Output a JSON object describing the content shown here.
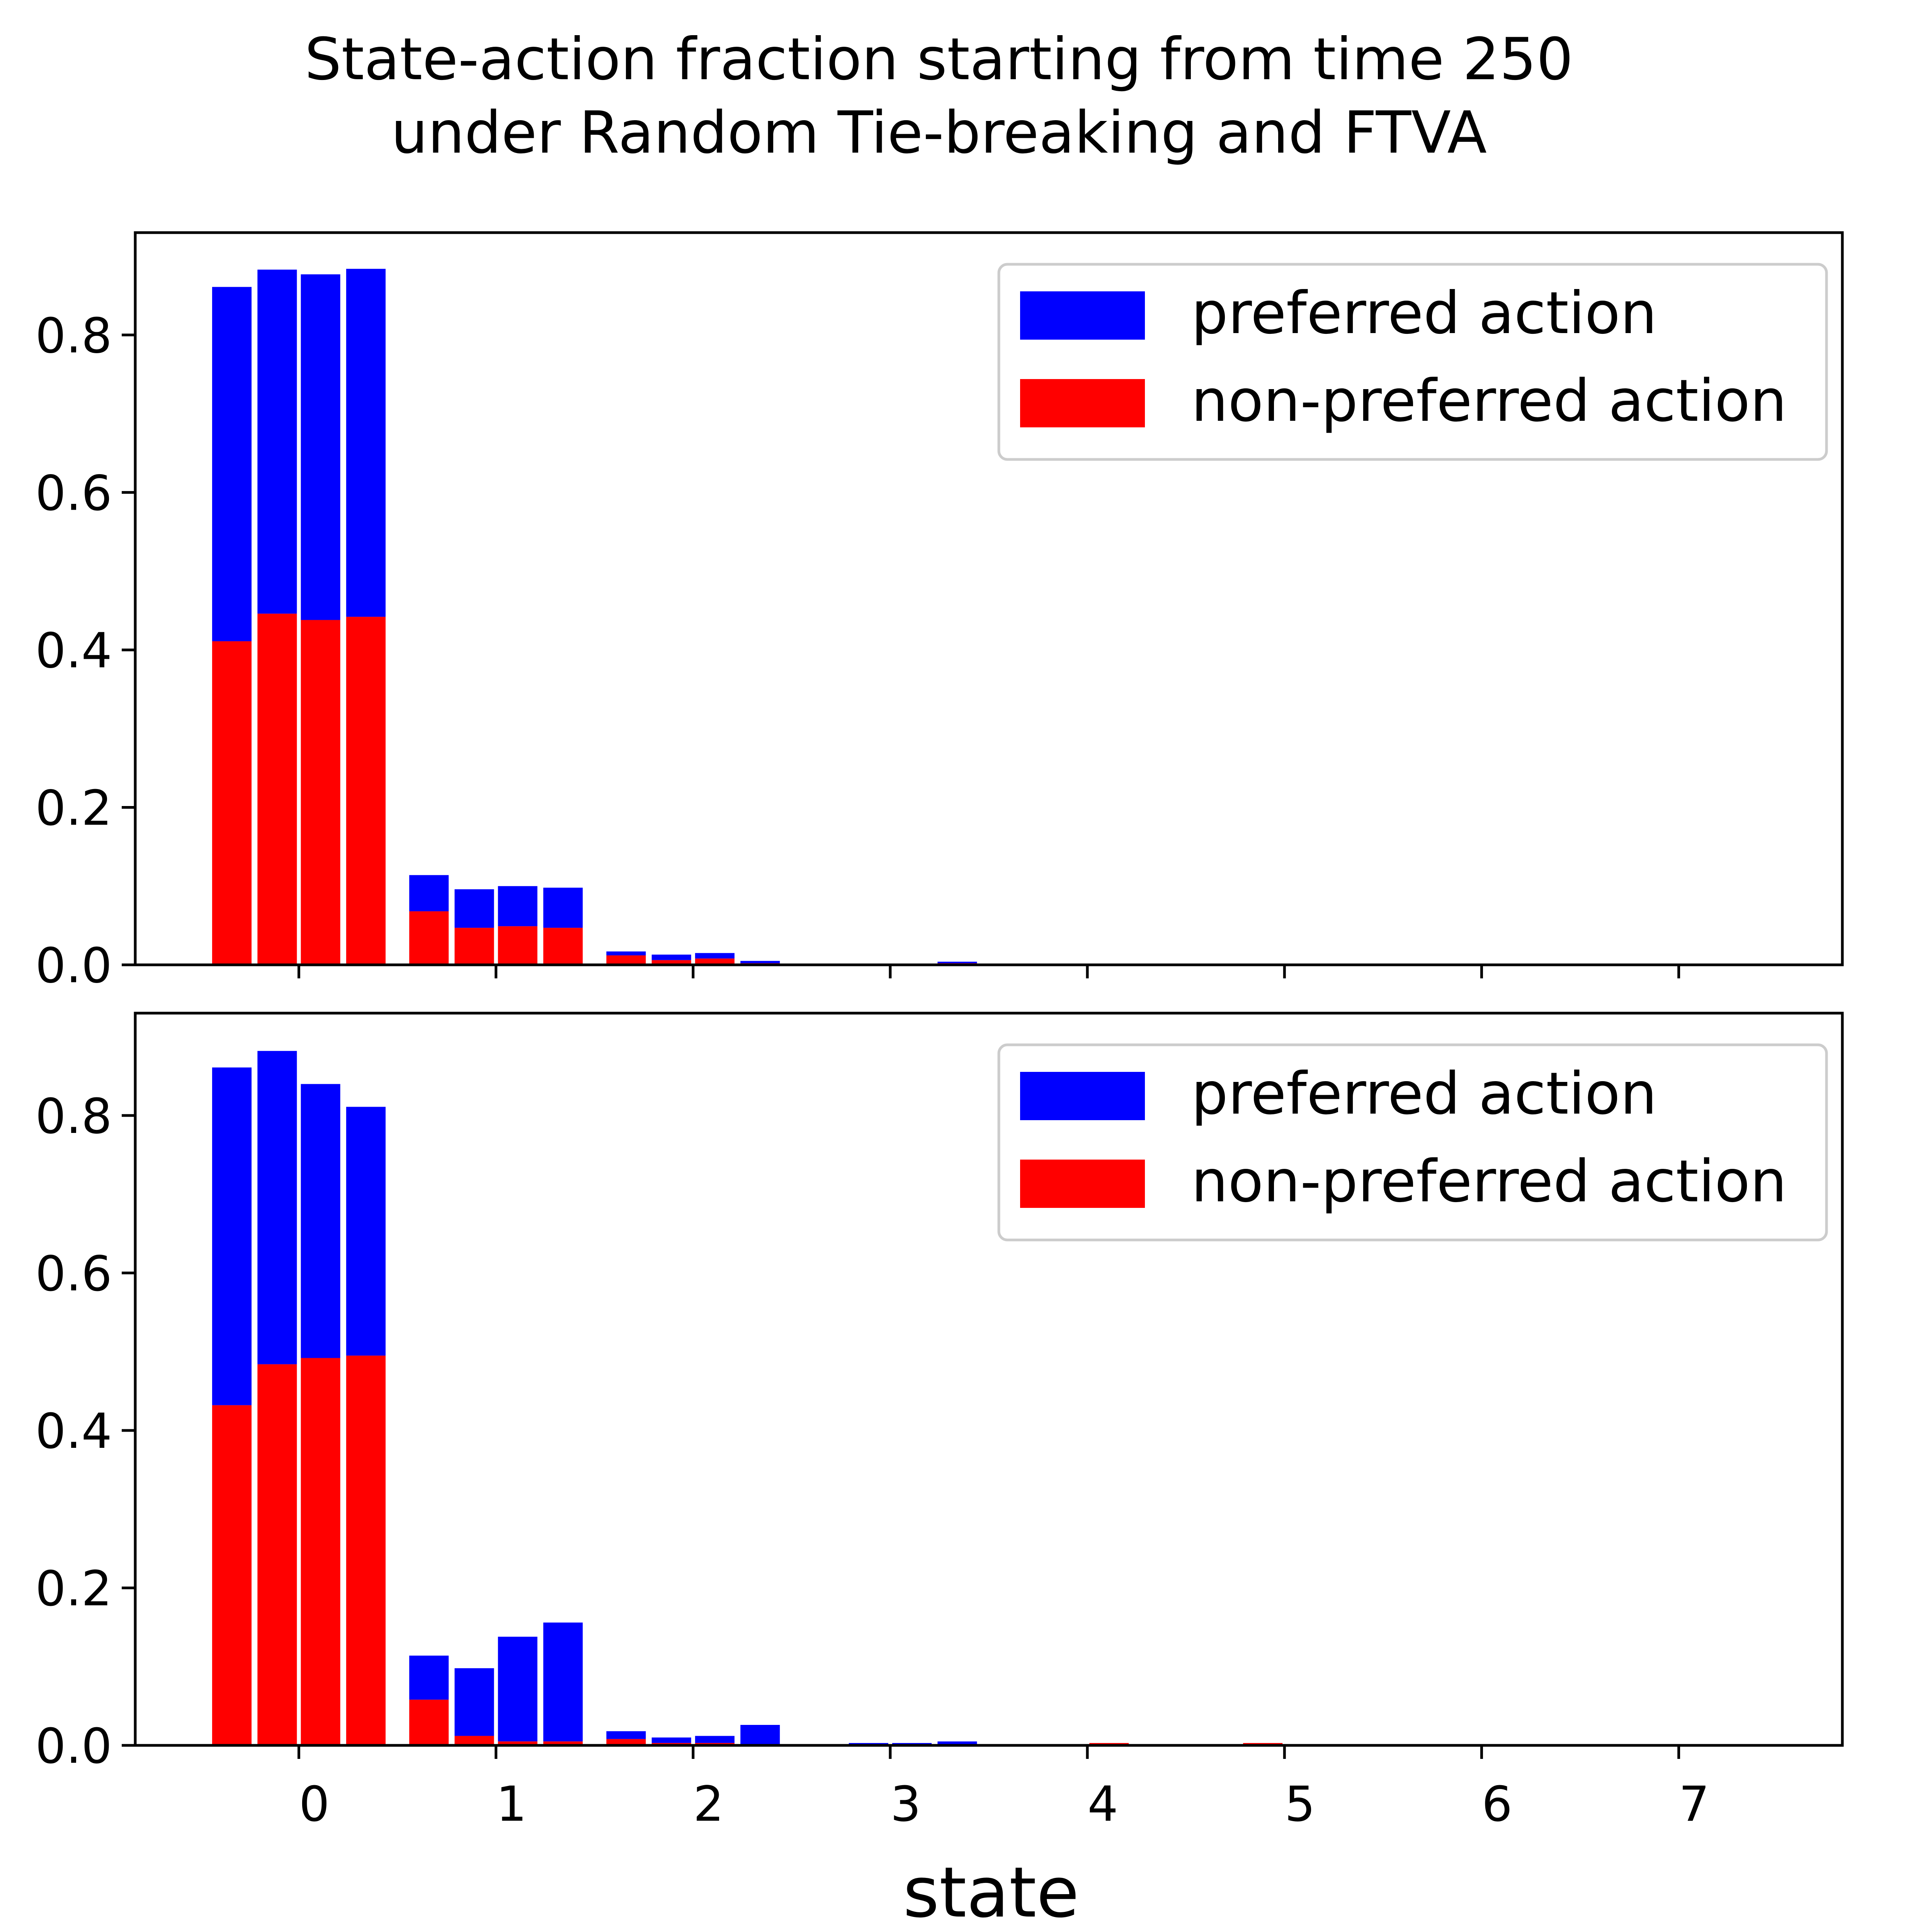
{
  "chart_data": {
    "title_line1": "State-action fraction starting from time 250",
    "title_line2": "under Random Tie-breaking and FTVA",
    "xlabel": "state",
    "x_ticks": [
      "0",
      "1",
      "2",
      "3",
      "4",
      "5",
      "6",
      "7"
    ],
    "y_ticks": [
      "0.0",
      "0.2",
      "0.4",
      "0.6",
      "0.8"
    ],
    "ylim": [
      0,
      0.93
    ],
    "colors": {
      "preferred": "#0000ff",
      "non_preferred": "#ff0000"
    },
    "legend": {
      "placement": "top-right",
      "preferred_label": "preferred action",
      "non_preferred_label": "non-preferred action"
    },
    "panels": [
      {
        "type": "stacked-bar",
        "bars": [
          {
            "x": -0.34,
            "red": 0.411,
            "total": 0.861
          },
          {
            "x": -0.11,
            "red": 0.446,
            "total": 0.883
          },
          {
            "x": 0.11,
            "red": 0.438,
            "total": 0.877
          },
          {
            "x": 0.34,
            "red": 0.442,
            "total": 0.884
          },
          {
            "x": 0.66,
            "red": 0.068,
            "total": 0.114
          },
          {
            "x": 0.89,
            "red": 0.047,
            "total": 0.096
          },
          {
            "x": 1.11,
            "red": 0.049,
            "total": 0.1
          },
          {
            "x": 1.34,
            "red": 0.047,
            "total": 0.098
          },
          {
            "x": 1.66,
            "red": 0.012,
            "total": 0.017
          },
          {
            "x": 1.89,
            "red": 0.006,
            "total": 0.013
          },
          {
            "x": 2.11,
            "red": 0.008,
            "total": 0.015
          },
          {
            "x": 2.34,
            "red": 0.002,
            "total": 0.005
          },
          {
            "x": 3.34,
            "red": 0.002,
            "total": 0.004
          }
        ]
      },
      {
        "type": "stacked-bar",
        "bars": [
          {
            "x": -0.34,
            "red": 0.432,
            "total": 0.861
          },
          {
            "x": -0.11,
            "red": 0.484,
            "total": 0.882
          },
          {
            "x": 0.11,
            "red": 0.492,
            "total": 0.84
          },
          {
            "x": 0.34,
            "red": 0.495,
            "total": 0.811
          },
          {
            "x": 0.66,
            "red": 0.058,
            "total": 0.114
          },
          {
            "x": 0.89,
            "red": 0.012,
            "total": 0.098
          },
          {
            "x": 1.11,
            "red": 0.005,
            "total": 0.138
          },
          {
            "x": 1.34,
            "red": 0.005,
            "total": 0.156
          },
          {
            "x": 1.66,
            "red": 0.008,
            "total": 0.018
          },
          {
            "x": 1.89,
            "red": 0.003,
            "total": 0.01
          },
          {
            "x": 2.11,
            "red": 0.003,
            "total": 0.012
          },
          {
            "x": 2.34,
            "red": 0.0,
            "total": 0.026
          },
          {
            "x": 2.89,
            "red": 0.0,
            "total": 0.003
          },
          {
            "x": 3.11,
            "red": 0.0,
            "total": 0.003
          },
          {
            "x": 3.34,
            "red": 0.0,
            "total": 0.005
          },
          {
            "x": 4.11,
            "red": 0.003,
            "total": 0.003
          },
          {
            "x": 4.89,
            "red": 0.003,
            "total": 0.003
          }
        ]
      }
    ]
  }
}
